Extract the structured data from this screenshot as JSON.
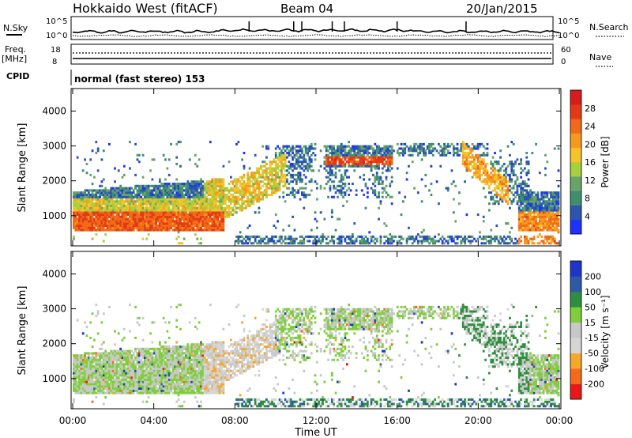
{
  "header": {
    "station": "Hokkaido West (fitACF)",
    "beam": "Beam 04",
    "date": "20/Jan/2015"
  },
  "top_panel": {
    "nsky_label": "N.Sky",
    "nsearch_label": "N.Search",
    "noise_ticks": [
      "10^5",
      "10^0"
    ],
    "freq_label_line1": "Freq.",
    "freq_label_line2": "[MHz]",
    "freq_ticks": [
      "18",
      "8"
    ],
    "nave_label": "Nave",
    "nave_ticks": [
      "60",
      "0"
    ],
    "cpid_label": "CPID",
    "cpid_text": "normal (fast stereo) 153"
  },
  "colors": {
    "power_scale": [
      "#1f30ff",
      "#2c55b0",
      "#3f8f6f",
      "#6aa36a",
      "#a8cf3c",
      "#f5c32a",
      "#f59a1f",
      "#f06b18",
      "#e33a16",
      "#d81c1c"
    ],
    "velocity_scale": [
      "#e81818",
      "#f56a18",
      "#f5a82a",
      "#d6d6d6",
      "#c8c8c8",
      "#7fcf3a",
      "#2f8f3f",
      "#2d5aa8",
      "#2036c9"
    ]
  },
  "chart_data": [
    {
      "type": "heatmap",
      "name": "power",
      "xlabel": "",
      "ylabel": "Slant Range [km]",
      "yticks": [
        "1000",
        "2000",
        "3000",
        "4000"
      ],
      "ylim": [
        180,
        4600
      ],
      "colorbar_label": "Power [dB]",
      "colorbar_ticks": [
        "4",
        "8",
        "12",
        "16",
        "20",
        "24",
        "28"
      ],
      "clim": [
        0,
        32
      ]
    },
    {
      "type": "heatmap",
      "name": "velocity",
      "xlabel": "Time UT",
      "ylabel": "Slant Range [km]",
      "yticks": [
        "1000",
        "2000",
        "3000",
        "4000"
      ],
      "xticks": [
        "00:00",
        "04:00",
        "08:00",
        "12:00",
        "16:00",
        "20:00",
        "00:00"
      ],
      "xlim_hours": [
        0,
        24
      ],
      "ylim": [
        180,
        4600
      ],
      "colorbar_label": "Velocity [m s⁻¹]",
      "colorbar_ticks": [
        "-200",
        "-100",
        "-50",
        "-15",
        "15",
        "50",
        "100",
        "200"
      ],
      "clim": [
        -250,
        250
      ]
    }
  ]
}
